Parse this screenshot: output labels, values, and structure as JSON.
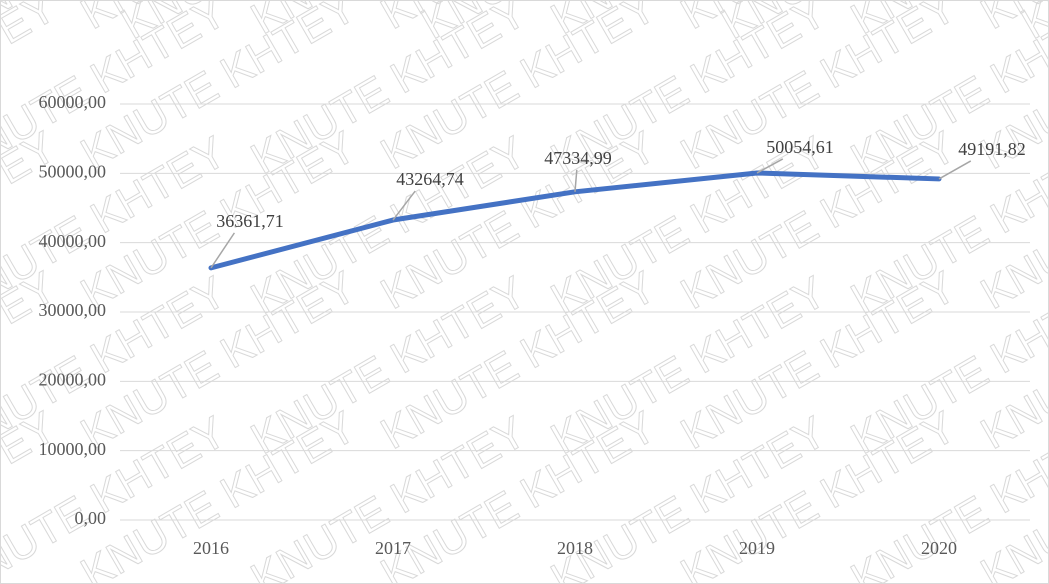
{
  "chart_data": {
    "type": "line",
    "watermark": "KNUTE KHTEY",
    "categories": [
      "2016",
      "2017",
      "2018",
      "2019",
      "2020"
    ],
    "series": [
      {
        "name": "",
        "color": "#4472c4",
        "values": [
          36361.71,
          43264.74,
          47334.99,
          50054.61,
          49191.82
        ],
        "value_labels": [
          "36361,71",
          "43264,74",
          "47334,99",
          "50054,61",
          "49191,82"
        ]
      }
    ],
    "ylim": [
      0,
      60000
    ],
    "yticks": [
      {
        "value": 0,
        "label": "0,00"
      },
      {
        "value": 10000,
        "label": "10000,00"
      },
      {
        "value": 20000,
        "label": "20000,00"
      },
      {
        "value": 30000,
        "label": "30000,00"
      },
      {
        "value": 40000,
        "label": "40000,00"
      },
      {
        "value": 50000,
        "label": "50000,00"
      },
      {
        "value": 60000,
        "label": "60000,00"
      }
    ],
    "grid": true
  }
}
